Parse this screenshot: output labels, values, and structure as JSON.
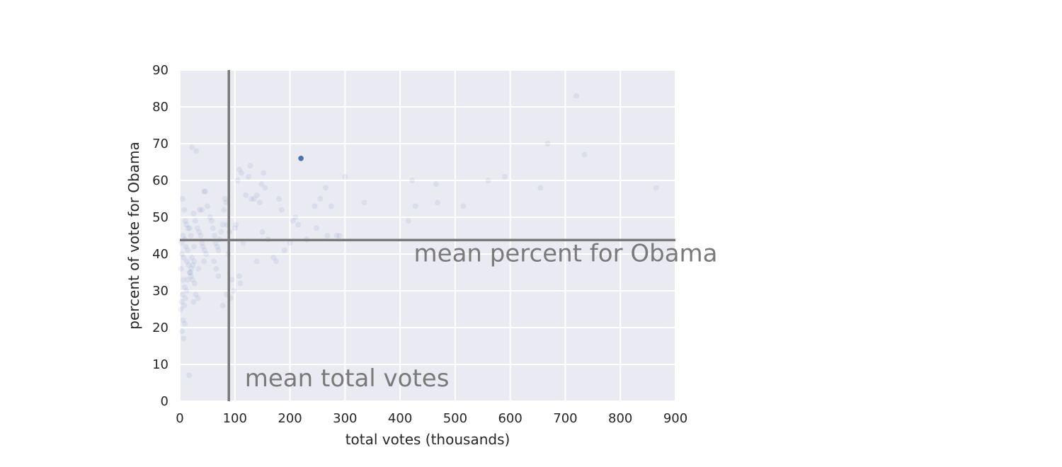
{
  "chart_data": {
    "type": "scatter",
    "xlabel": "total votes (thousands)",
    "ylabel": "percent of vote for Obama",
    "xlim": [
      0,
      900
    ],
    "ylim": [
      0,
      90
    ],
    "xticks": [
      "0",
      "100",
      "200",
      "300",
      "400",
      "500",
      "600",
      "700",
      "800",
      "900"
    ],
    "yticks": [
      "0",
      "10",
      "20",
      "30",
      "40",
      "50",
      "60",
      "70",
      "80",
      "90"
    ],
    "grid": true,
    "background": "#eaeaf2",
    "point_color": "#4c72b0",
    "reference_line_color": "#7a7a7a",
    "mean_total_votes": 89,
    "mean_percent_obama": 43.8,
    "annotations": [
      {
        "text": "mean percent for Obama",
        "x": 425,
        "y": 38
      },
      {
        "text": "mean total votes",
        "x": 118,
        "y": 4
      }
    ],
    "highlighted_point": {
      "x": 220,
      "y": 66
    },
    "faded_points": [
      [
        5,
        55
      ],
      [
        8,
        52
      ],
      [
        10,
        49
      ],
      [
        12,
        48
      ],
      [
        15,
        47
      ],
      [
        6,
        45
      ],
      [
        9,
        44
      ],
      [
        3,
        43
      ],
      [
        11,
        42
      ],
      [
        14,
        41
      ],
      [
        4,
        40
      ],
      [
        7,
        39
      ],
      [
        13,
        38
      ],
      [
        16,
        37
      ],
      [
        2,
        36
      ],
      [
        18,
        35
      ],
      [
        20,
        34
      ],
      [
        6,
        33
      ],
      [
        9,
        31
      ],
      [
        12,
        30
      ],
      [
        5,
        29
      ],
      [
        3,
        27
      ],
      [
        8,
        26
      ],
      [
        2,
        25
      ],
      [
        6,
        22
      ],
      [
        9,
        21
      ],
      [
        4,
        19
      ],
      [
        7,
        17
      ],
      [
        17,
        7
      ],
      [
        22,
        69
      ],
      [
        30,
        68
      ],
      [
        25,
        51
      ],
      [
        28,
        49
      ],
      [
        32,
        47
      ],
      [
        35,
        46
      ],
      [
        38,
        45
      ],
      [
        40,
        43
      ],
      [
        42,
        42
      ],
      [
        45,
        41
      ],
      [
        48,
        40
      ],
      [
        22,
        39
      ],
      [
        26,
        38
      ],
      [
        24,
        37
      ],
      [
        21,
        36
      ],
      [
        19,
        35
      ],
      [
        23,
        33
      ],
      [
        27,
        32
      ],
      [
        29,
        29
      ],
      [
        33,
        28
      ],
      [
        25,
        27
      ],
      [
        36,
        52
      ],
      [
        40,
        52
      ],
      [
        44,
        57
      ],
      [
        46,
        57
      ],
      [
        50,
        53
      ],
      [
        55,
        50
      ],
      [
        58,
        49
      ],
      [
        60,
        47
      ],
      [
        63,
        45
      ],
      [
        65,
        43
      ],
      [
        68,
        42
      ],
      [
        70,
        41
      ],
      [
        72,
        44
      ],
      [
        75,
        46
      ],
      [
        78,
        48
      ],
      [
        80,
        52
      ],
      [
        82,
        55
      ],
      [
        84,
        54
      ],
      [
        86,
        48
      ],
      [
        90,
        46
      ],
      [
        62,
        38
      ],
      [
        66,
        36
      ],
      [
        70,
        34
      ],
      [
        88,
        40
      ],
      [
        78,
        26
      ],
      [
        85,
        29
      ],
      [
        92,
        28
      ],
      [
        95,
        33
      ],
      [
        98,
        30
      ],
      [
        100,
        47
      ],
      [
        102,
        48
      ],
      [
        105,
        60
      ],
      [
        108,
        63
      ],
      [
        112,
        62
      ],
      [
        115,
        43
      ],
      [
        108,
        34
      ],
      [
        110,
        32
      ],
      [
        120,
        56
      ],
      [
        125,
        61
      ],
      [
        128,
        64
      ],
      [
        130,
        55
      ],
      [
        135,
        55
      ],
      [
        140,
        56
      ],
      [
        145,
        54
      ],
      [
        148,
        59
      ],
      [
        152,
        62
      ],
      [
        155,
        58
      ],
      [
        150,
        46
      ],
      [
        160,
        44
      ],
      [
        170,
        39
      ],
      [
        140,
        38
      ],
      [
        180,
        55
      ],
      [
        185,
        52
      ],
      [
        190,
        41
      ],
      [
        175,
        38
      ],
      [
        200,
        43
      ],
      [
        205,
        49
      ],
      [
        210,
        50
      ],
      [
        215,
        48
      ],
      [
        230,
        44
      ],
      [
        245,
        53
      ],
      [
        255,
        55
      ],
      [
        265,
        58
      ],
      [
        275,
        53
      ],
      [
        285,
        45
      ],
      [
        290,
        45
      ],
      [
        268,
        45
      ],
      [
        248,
        47
      ],
      [
        300,
        61
      ],
      [
        335,
        54
      ],
      [
        415,
        49
      ],
      [
        422,
        60
      ],
      [
        428,
        53
      ],
      [
        465,
        59
      ],
      [
        468,
        54
      ],
      [
        515,
        53
      ],
      [
        560,
        60
      ],
      [
        590,
        61
      ],
      [
        655,
        58
      ],
      [
        668,
        70
      ],
      [
        720,
        83
      ],
      [
        735,
        67
      ],
      [
        865,
        58
      ],
      [
        18,
        47
      ],
      [
        20,
        45
      ],
      [
        14,
        33
      ],
      [
        10,
        28
      ],
      [
        26,
        42
      ],
      [
        34,
        36
      ],
      [
        44,
        38
      ]
    ]
  }
}
